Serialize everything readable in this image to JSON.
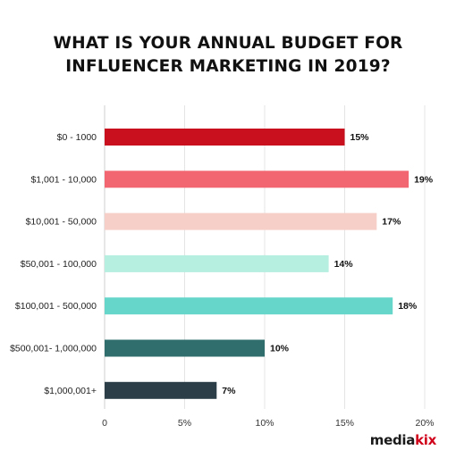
{
  "chart_data": {
    "type": "bar",
    "orientation": "horizontal",
    "title_lines": [
      "WHAT IS YOUR ANNUAL BUDGET FOR",
      "INFLUENCER MARKETING IN 2019?"
    ],
    "categories": [
      "$0 - 1000",
      "$1,001 - 10,000",
      "$10,001 - 50,000",
      "$50,001 - 100,000",
      "$100,001 - 500,000",
      "$500,001- 1,000,000",
      "$1,000,001+"
    ],
    "values": [
      15,
      19,
      17,
      14,
      18,
      10,
      7
    ],
    "value_labels": [
      "15%",
      "19%",
      "17%",
      "14%",
      "18%",
      "10%",
      "7%"
    ],
    "bar_colors": [
      "#c8101e",
      "#f26672",
      "#f7cfc9",
      "#b6eedf",
      "#66d6cb",
      "#2f6e6c",
      "#2c3e47"
    ],
    "xlim": [
      0,
      20
    ],
    "x_ticks": [
      0,
      5,
      10,
      15,
      20
    ],
    "x_tick_labels": [
      "0",
      "5%",
      "10%",
      "15%",
      "20%"
    ],
    "grid": "vertical",
    "xlabel": "",
    "ylabel": ""
  },
  "brand": {
    "part1": "media",
    "part2": "kix"
  }
}
